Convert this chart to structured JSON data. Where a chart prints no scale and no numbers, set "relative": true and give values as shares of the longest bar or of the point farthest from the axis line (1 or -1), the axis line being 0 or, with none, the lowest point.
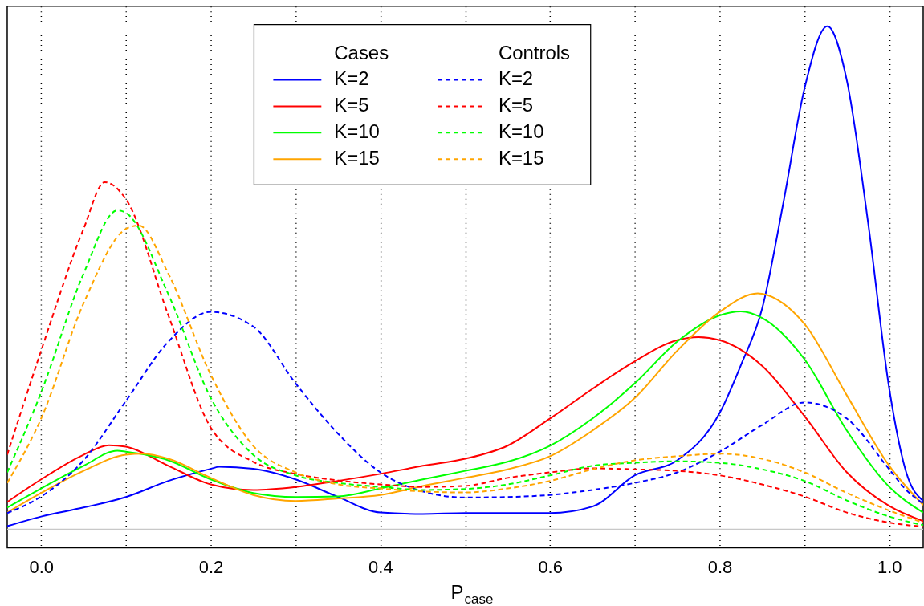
{
  "chart_data": {
    "type": "line",
    "xlabel": "P$_{case}$",
    "relative": true,
    "grid": "x",
    "legend": "top",
    "annotations": [
      "Cases",
      "Controls"
    ],
    "xlim": [
      -0.04,
      1.04
    ],
    "xticks": [
      {
        "value": 0,
        "label": "0.0"
      },
      {
        "value": 0.1,
        "label": null
      },
      0.2,
      {
        "value": 0.3,
        "label": null
      },
      0.4,
      {
        "value": 0.5,
        "label": null
      },
      0.6,
      {
        "value": 0.7,
        "label": null
      },
      0.8,
      {
        "value": 0.9,
        "label": null
      },
      {
        "value": 1,
        "label": "1.0"
      }
    ],
    "series": [
      {
        "name": "K=2",
        "color": "#0000ff",
        "line_style": "solid",
        "x": [
          -0.04,
          0,
          0.05,
          0.1,
          0.15,
          0.2,
          0.21,
          0.25,
          0.3,
          0.35,
          0.4,
          0.45,
          0.5,
          0.55,
          0.6,
          0.65,
          0.7,
          0.75,
          0.8,
          0.825,
          0.85,
          0.875,
          0.9,
          0.927,
          0.95,
          0.975,
          1.0,
          1.02,
          1.04
        ],
        "values": [
          0.006,
          0.025,
          0.043,
          0.064,
          0.096,
          0.12,
          0.124,
          0.12,
          0.099,
          0.064,
          0.033,
          0.03,
          0.032,
          0.032,
          0.032,
          0.045,
          0.107,
          0.137,
          0.231,
          0.326,
          0.438,
          0.648,
          0.876,
          1.0,
          0.892,
          0.61,
          0.279,
          0.113,
          0.056
        ]
      },
      {
        "name": "K=5",
        "color": "#ff0000",
        "line_style": "solid",
        "x": [
          -0.04,
          0,
          0.05,
          0.08,
          0.1,
          0.15,
          0.2,
          0.25,
          0.3,
          0.35,
          0.4,
          0.45,
          0.5,
          0.55,
          0.6,
          0.65,
          0.7,
          0.75,
          0.775,
          0.8,
          0.85,
          0.9,
          0.95,
          1.0,
          1.04
        ],
        "values": [
          0.054,
          0.099,
          0.148,
          0.167,
          0.164,
          0.126,
          0.089,
          0.078,
          0.084,
          0.096,
          0.11,
          0.126,
          0.14,
          0.166,
          0.22,
          0.279,
          0.334,
          0.376,
          0.382,
          0.376,
          0.325,
          0.225,
          0.113,
          0.046,
          0.016
        ]
      },
      {
        "name": "K=10",
        "color": "#00ff00",
        "line_style": "solid",
        "x": [
          -0.04,
          0,
          0.05,
          0.09,
          0.1,
          0.15,
          0.2,
          0.25,
          0.3,
          0.35,
          0.4,
          0.45,
          0.5,
          0.55,
          0.6,
          0.65,
          0.7,
          0.75,
          0.8,
          0.825,
          0.85,
          0.9,
          0.95,
          1.0,
          1.04
        ],
        "values": [
          0.043,
          0.081,
          0.126,
          0.156,
          0.154,
          0.137,
          0.099,
          0.072,
          0.064,
          0.065,
          0.081,
          0.099,
          0.116,
          0.134,
          0.166,
          0.22,
          0.29,
          0.373,
          0.425,
          0.433,
          0.42,
          0.338,
          0.196,
          0.084,
          0.033
        ]
      },
      {
        "name": "K=15",
        "color": "#ffa500",
        "line_style": "solid",
        "x": [
          -0.04,
          0,
          0.05,
          0.1,
          0.12,
          0.15,
          0.2,
          0.25,
          0.3,
          0.35,
          0.4,
          0.45,
          0.5,
          0.55,
          0.6,
          0.65,
          0.7,
          0.75,
          0.8,
          0.845,
          0.85,
          0.9,
          0.95,
          1.0,
          1.04
        ],
        "values": [
          0.033,
          0.072,
          0.116,
          0.148,
          0.15,
          0.14,
          0.102,
          0.068,
          0.056,
          0.061,
          0.068,
          0.086,
          0.102,
          0.119,
          0.145,
          0.196,
          0.261,
          0.355,
          0.432,
          0.469,
          0.468,
          0.408,
          0.266,
          0.126,
          0.048
        ]
      },
      {
        "name": "K=2",
        "color": "#0000ff",
        "line_style": "dashed",
        "x": [
          -0.04,
          0,
          0.05,
          0.1,
          0.15,
          0.2,
          0.25,
          0.3,
          0.35,
          0.4,
          0.45,
          0.5,
          0.55,
          0.6,
          0.65,
          0.7,
          0.75,
          0.8,
          0.85,
          0.9,
          0.95,
          1.0,
          1.02,
          1.04
        ],
        "values": [
          0.032,
          0.065,
          0.137,
          0.255,
          0.373,
          0.432,
          0.403,
          0.29,
          0.19,
          0.113,
          0.075,
          0.063,
          0.064,
          0.068,
          0.078,
          0.092,
          0.113,
          0.154,
          0.207,
          0.252,
          0.22,
          0.119,
          0.078,
          0.051
        ]
      },
      {
        "name": "K=5",
        "color": "#ff0000",
        "line_style": "dashed",
        "x": [
          -0.04,
          0,
          0.05,
          0.075,
          0.1,
          0.15,
          0.2,
          0.25,
          0.3,
          0.35,
          0.4,
          0.45,
          0.5,
          0.55,
          0.6,
          0.65,
          0.7,
          0.75,
          0.8,
          0.85,
          0.9,
          0.95,
          1.0,
          1.04
        ],
        "values": [
          0.148,
          0.355,
          0.597,
          0.69,
          0.656,
          0.425,
          0.202,
          0.134,
          0.11,
          0.097,
          0.089,
          0.084,
          0.086,
          0.102,
          0.113,
          0.121,
          0.119,
          0.116,
          0.107,
          0.089,
          0.065,
          0.033,
          0.013,
          0.005
        ]
      },
      {
        "name": "K=10",
        "color": "#00ff00",
        "line_style": "dashed",
        "x": [
          -0.04,
          0,
          0.05,
          0.09,
          0.1,
          0.15,
          0.2,
          0.25,
          0.3,
          0.35,
          0.4,
          0.45,
          0.5,
          0.55,
          0.6,
          0.65,
          0.7,
          0.75,
          0.8,
          0.85,
          0.9,
          0.95,
          1.0,
          1.04
        ],
        "values": [
          0.113,
          0.272,
          0.508,
          0.634,
          0.629,
          0.467,
          0.261,
          0.148,
          0.107,
          0.092,
          0.084,
          0.078,
          0.08,
          0.089,
          0.107,
          0.126,
          0.132,
          0.135,
          0.132,
          0.119,
          0.096,
          0.057,
          0.025,
          0.008
        ]
      },
      {
        "name": "K=15",
        "color": "#ffa500",
        "line_style": "dashed",
        "x": [
          -0.04,
          0,
          0.05,
          0.1,
          0.115,
          0.15,
          0.2,
          0.25,
          0.3,
          0.35,
          0.4,
          0.45,
          0.5,
          0.55,
          0.6,
          0.65,
          0.7,
          0.75,
          0.8,
          0.85,
          0.9,
          0.95,
          1.0,
          1.04
        ],
        "values": [
          0.092,
          0.22,
          0.449,
          0.597,
          0.604,
          0.508,
          0.307,
          0.166,
          0.113,
          0.089,
          0.081,
          0.075,
          0.073,
          0.081,
          0.096,
          0.119,
          0.137,
          0.145,
          0.15,
          0.14,
          0.113,
          0.072,
          0.037,
          0.013
        ]
      }
    ]
  }
}
